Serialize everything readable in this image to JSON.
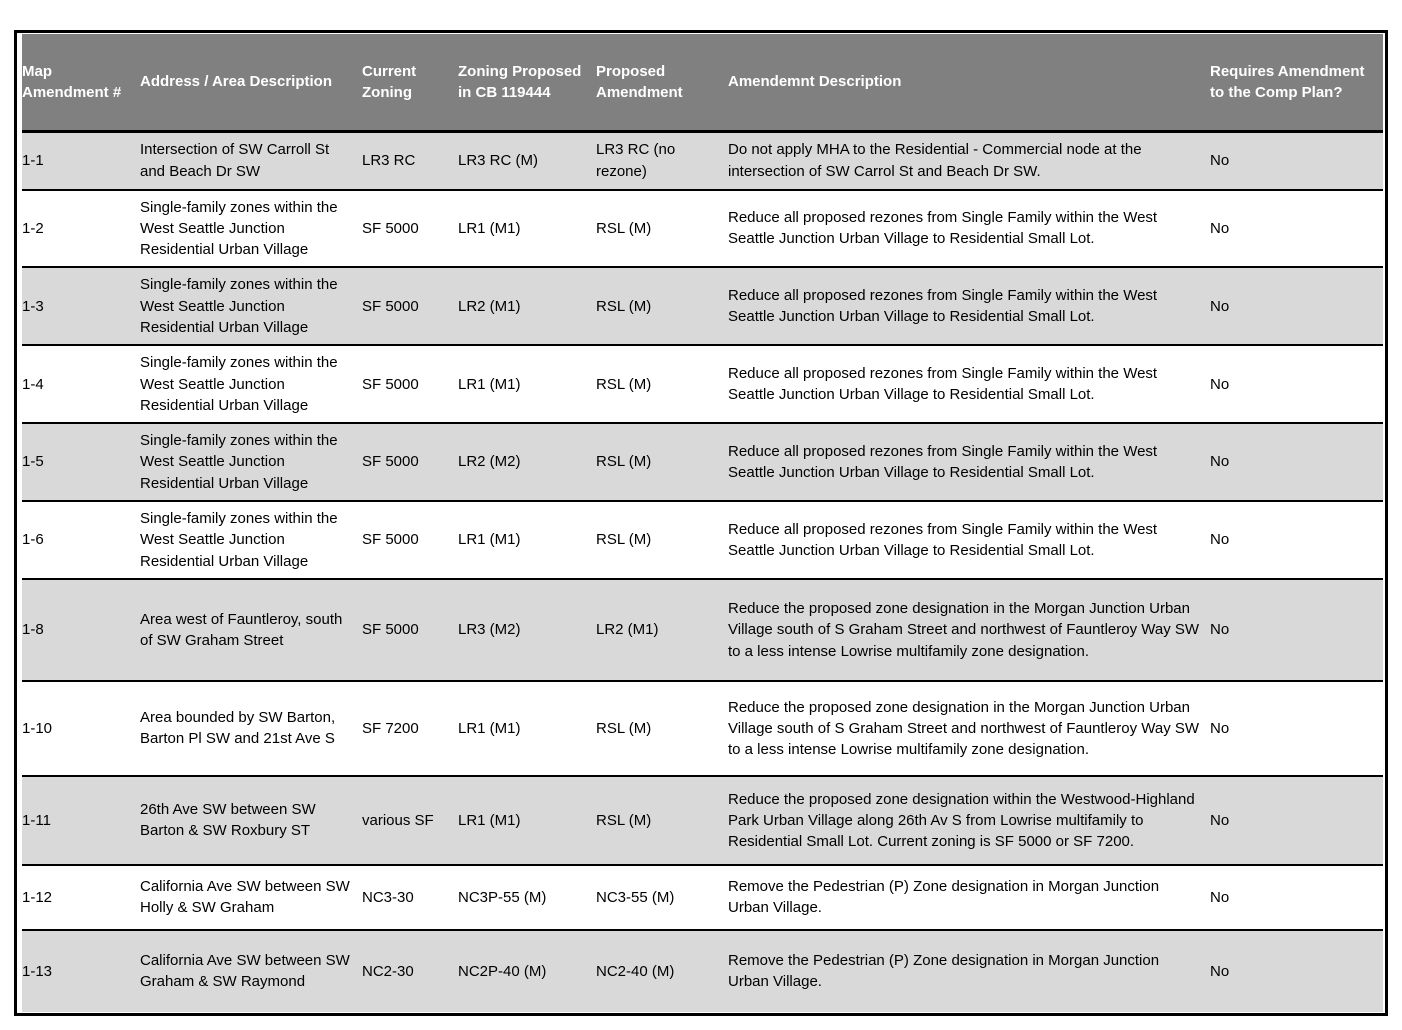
{
  "table": {
    "columns": [
      "Map Amendment #",
      "Address / Area Description",
      "Current Zoning",
      "Zoning Proposed in CB 119444",
      "Proposed Amendment",
      "Amendemnt Description",
      "Requires Amendment to the Comp Plan?"
    ],
    "rows": [
      {
        "id": "1-1",
        "address": "Intersection of SW Carroll St and Beach Dr SW",
        "current_zoning": "LR3 RC",
        "proposed_cb": "LR3 RC  (M)",
        "proposed_amendment": "LR3 RC (no rezone)",
        "description": "Do not apply MHA to the Residential - Commercial node at the intersection of SW Carrol St and Beach Dr SW.",
        "requires_comp_plan": "No"
      },
      {
        "id": "1-2",
        "address": "Single-family zones within the West Seattle Junction Residential Urban Village",
        "current_zoning": "SF 5000",
        "proposed_cb": "LR1 (M1)",
        "proposed_amendment": "RSL (M)",
        "description": "Reduce all proposed rezones from Single Family within the West Seattle Junction Urban Village to Residential Small Lot.",
        "requires_comp_plan": "No"
      },
      {
        "id": "1-3",
        "address": "Single-family zones within the West Seattle Junction Residential Urban Village",
        "current_zoning": "SF 5000",
        "proposed_cb": "LR2 (M1)",
        "proposed_amendment": "RSL (M)",
        "description": "Reduce all proposed rezones from Single Family within the West Seattle Junction Urban Village to Residential Small Lot.",
        "requires_comp_plan": "No"
      },
      {
        "id": "1-4",
        "address": "Single-family zones within the West Seattle Junction Residential Urban Village",
        "current_zoning": "SF 5000",
        "proposed_cb": "LR1 (M1)",
        "proposed_amendment": "RSL (M)",
        "description": "Reduce all proposed rezones from Single Family within the West Seattle Junction Urban Village to Residential Small Lot.",
        "requires_comp_plan": "No"
      },
      {
        "id": "1-5",
        "address": "Single-family zones within the West Seattle Junction Residential Urban Village",
        "current_zoning": "SF 5000",
        "proposed_cb": "LR2 (M2)",
        "proposed_amendment": "RSL (M)",
        "description": "Reduce all proposed rezones from Single Family within the West Seattle Junction Urban Village to Residential Small Lot.",
        "requires_comp_plan": "No"
      },
      {
        "id": "1-6",
        "address": "Single-family zones within the West Seattle Junction Residential Urban Village",
        "current_zoning": "SF 5000",
        "proposed_cb": "LR1 (M1)",
        "proposed_amendment": "RSL (M)",
        "description": "Reduce all proposed rezones from Single Family within the West Seattle Junction Urban Village to Residential Small Lot.",
        "requires_comp_plan": "No"
      },
      {
        "id": "1-8",
        "address": "Area west of Fauntleroy, south of SW Graham Street",
        "current_zoning": "SF 5000",
        "proposed_cb": "LR3 (M2)",
        "proposed_amendment": "LR2 (M1)",
        "description": "Reduce the proposed zone designation in the Morgan Junction Urban Village south of S Graham Street and northwest of Fauntleroy Way SW to a less intense Lowrise multifamily zone designation.",
        "requires_comp_plan": "No"
      },
      {
        "id": "1-10",
        "address": "Area bounded by SW Barton, Barton Pl SW and 21st Ave S",
        "current_zoning": "SF 7200",
        "proposed_cb": "LR1 (M1)",
        "proposed_amendment": "RSL (M)",
        "description": "Reduce the proposed zone designation in the Morgan Junction Urban Village south of S Graham Street and northwest of Fauntleroy Way SW to a less intense Lowrise multifamily zone designation.",
        "requires_comp_plan": "No"
      },
      {
        "id": "1-11",
        "address": "26th Ave SW between SW Barton & SW Roxbury ST",
        "current_zoning": "various SF",
        "proposed_cb": "LR1 (M1)",
        "proposed_amendment": "RSL (M)",
        "description": "Reduce the proposed zone designation within the Westwood-Highland Park Urban Village along 26th Av S from Lowrise multifamily to Residential Small Lot. Current zoning is SF 5000 or SF 7200.",
        "requires_comp_plan": "No"
      },
      {
        "id": "1-12",
        "address": "California Ave SW between SW Holly & SW Graham",
        "current_zoning": "NC3-30",
        "proposed_cb": "NC3P-55 (M)",
        "proposed_amendment": "NC3-55 (M)",
        "description": "Remove the Pedestrian (P) Zone designation in Morgan Junction Urban Village.",
        "requires_comp_plan": "No"
      },
      {
        "id": "1-13",
        "address": "California Ave SW between SW Graham & SW Raymond",
        "current_zoning": "NC2-30",
        "proposed_cb": "NC2P-40 (M)",
        "proposed_amendment": "NC2-40 (M)",
        "description": "Remove the Pedestrian (P) Zone designation in Morgan Junction Urban Village.",
        "requires_comp_plan": "No"
      }
    ],
    "colors": {
      "header_bg": "#808080",
      "header_text": "#ffffff",
      "shaded_row_bg": "#d9d9d9",
      "plain_row_bg": "#ffffff",
      "border": "#000000",
      "text": "#000000"
    }
  }
}
